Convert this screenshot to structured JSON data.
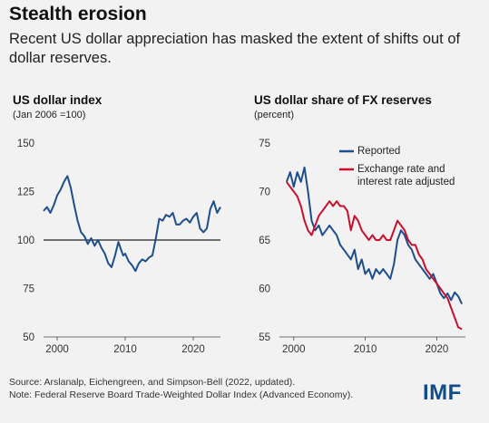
{
  "header": {
    "title": "Stealth erosion",
    "subtitle": "Recent US dollar appreciation has masked the extent of shifts out of dollar reserves."
  },
  "colors": {
    "blue": "#1f4e8c",
    "red": "#c8102e",
    "refline": "#222222"
  },
  "chart_data": [
    {
      "type": "line",
      "title": "US dollar index",
      "subtitle": "(Jan 2006 =100)",
      "xlim": [
        1998,
        2024
      ],
      "ylim": [
        50,
        150
      ],
      "xticks": [
        2000,
        2010,
        2020
      ],
      "yticks": [
        50,
        75,
        100,
        125,
        150
      ],
      "reference_line": 100,
      "series": [
        {
          "color": "#1f4e8c",
          "x": [
            1998.0,
            1998.5,
            1999.0,
            1999.5,
            2000.0,
            2000.5,
            2001.0,
            2001.5,
            2002.0,
            2002.5,
            2003.0,
            2003.5,
            2004.0,
            2004.5,
            2005.0,
            2005.5,
            2006.0,
            2006.5,
            2007.0,
            2007.5,
            2008.0,
            2008.5,
            2009.0,
            2009.3,
            2009.7,
            2010.0,
            2010.5,
            2011.0,
            2011.5,
            2012.0,
            2012.5,
            2013.0,
            2013.5,
            2014.0,
            2014.5,
            2015.0,
            2015.5,
            2016.0,
            2016.5,
            2017.0,
            2017.5,
            2018.0,
            2018.5,
            2019.0,
            2019.5,
            2020.0,
            2020.5,
            2021.0,
            2021.5,
            2022.0,
            2022.5,
            2023.0,
            2023.5,
            2024.0
          ],
          "values": [
            115,
            117,
            114,
            118,
            123,
            126,
            130,
            133,
            127,
            118,
            110,
            104,
            102,
            98,
            101,
            97,
            100,
            96,
            93,
            88,
            86,
            92,
            99,
            96,
            92,
            93,
            89,
            87,
            84,
            88,
            90,
            89,
            91,
            92,
            101,
            111,
            110,
            113,
            112,
            114,
            108,
            108,
            110,
            111,
            109,
            112,
            114,
            106,
            104,
            106,
            116,
            120,
            114,
            117
          ]
        }
      ]
    },
    {
      "type": "line",
      "title": "US dollar share of FX reserves",
      "subtitle": "(percent)",
      "xlim": [
        1998,
        2024
      ],
      "ylim": [
        55,
        75
      ],
      "xticks": [
        2000,
        2010,
        2020
      ],
      "yticks": [
        55,
        60,
        65,
        70,
        75
      ],
      "legend_position": "top-right",
      "series": [
        {
          "name": "Reported",
          "color": "#1f4e8c",
          "x": [
            1999.0,
            1999.5,
            2000.0,
            2000.5,
            2001.0,
            2001.5,
            2002.0,
            2002.5,
            2003.0,
            2003.5,
            2004.0,
            2004.5,
            2005.0,
            2005.5,
            2006.0,
            2006.5,
            2007.0,
            2007.5,
            2008.0,
            2008.5,
            2009.0,
            2009.5,
            2010.0,
            2010.5,
            2011.0,
            2011.5,
            2012.0,
            2012.5,
            2013.0,
            2013.5,
            2014.0,
            2014.5,
            2015.0,
            2015.5,
            2016.0,
            2016.5,
            2017.0,
            2017.5,
            2018.0,
            2018.5,
            2019.0,
            2019.5,
            2020.0,
            2020.5,
            2021.0,
            2021.5,
            2022.0,
            2022.5,
            2023.0,
            2023.5
          ],
          "values": [
            71,
            72,
            70.5,
            72,
            71,
            72.5,
            70,
            67,
            66,
            66.5,
            65.5,
            66,
            66.5,
            66,
            65.5,
            64.5,
            64,
            63.5,
            63,
            64,
            62,
            63,
            61.5,
            62,
            61,
            62,
            61.5,
            62,
            61.5,
            61,
            62.5,
            65,
            66,
            65.5,
            64.5,
            64,
            63,
            62.5,
            62,
            61.5,
            61,
            61.5,
            60.5,
            59.5,
            59,
            59.5,
            58.8,
            59.6,
            59.2,
            58.4
          ]
        },
        {
          "name": "Exchange rate and interest rate adjusted",
          "color": "#c8102e",
          "x": [
            1999.0,
            1999.5,
            2000.0,
            2000.5,
            2001.0,
            2001.5,
            2002.0,
            2002.5,
            2003.0,
            2003.5,
            2004.0,
            2004.5,
            2005.0,
            2005.5,
            2006.0,
            2006.5,
            2007.0,
            2007.5,
            2008.0,
            2008.5,
            2009.0,
            2009.5,
            2010.0,
            2010.5,
            2011.0,
            2011.5,
            2012.0,
            2012.5,
            2013.0,
            2013.5,
            2014.0,
            2014.5,
            2015.0,
            2015.5,
            2016.0,
            2016.5,
            2017.0,
            2017.5,
            2018.0,
            2018.5,
            2019.0,
            2019.5,
            2020.0,
            2020.5,
            2021.0,
            2021.5,
            2022.0,
            2022.5,
            2023.0,
            2023.5
          ],
          "values": [
            71,
            70.5,
            70,
            69.5,
            68.5,
            67,
            66,
            65.5,
            66.5,
            67.5,
            68,
            68.5,
            69,
            68.5,
            69,
            68.5,
            68.5,
            68,
            66,
            67.5,
            67,
            66,
            65.5,
            65,
            65.5,
            65,
            65,
            65.5,
            65,
            65,
            66,
            67,
            66.5,
            66,
            65,
            64.5,
            64.5,
            63.5,
            63,
            62,
            61.5,
            61,
            60.5,
            60,
            59.5,
            59,
            58,
            57,
            56,
            55.8
          ]
        }
      ]
    }
  ],
  "footer": {
    "source": "Source: Arslanalp, Eichengreen, and Simpson-Bell (2022, updated).",
    "note": "Note: Federal Reserve Board Trade-Weighted Dollar Index (Advanced Economy)."
  },
  "logo": "IMF"
}
